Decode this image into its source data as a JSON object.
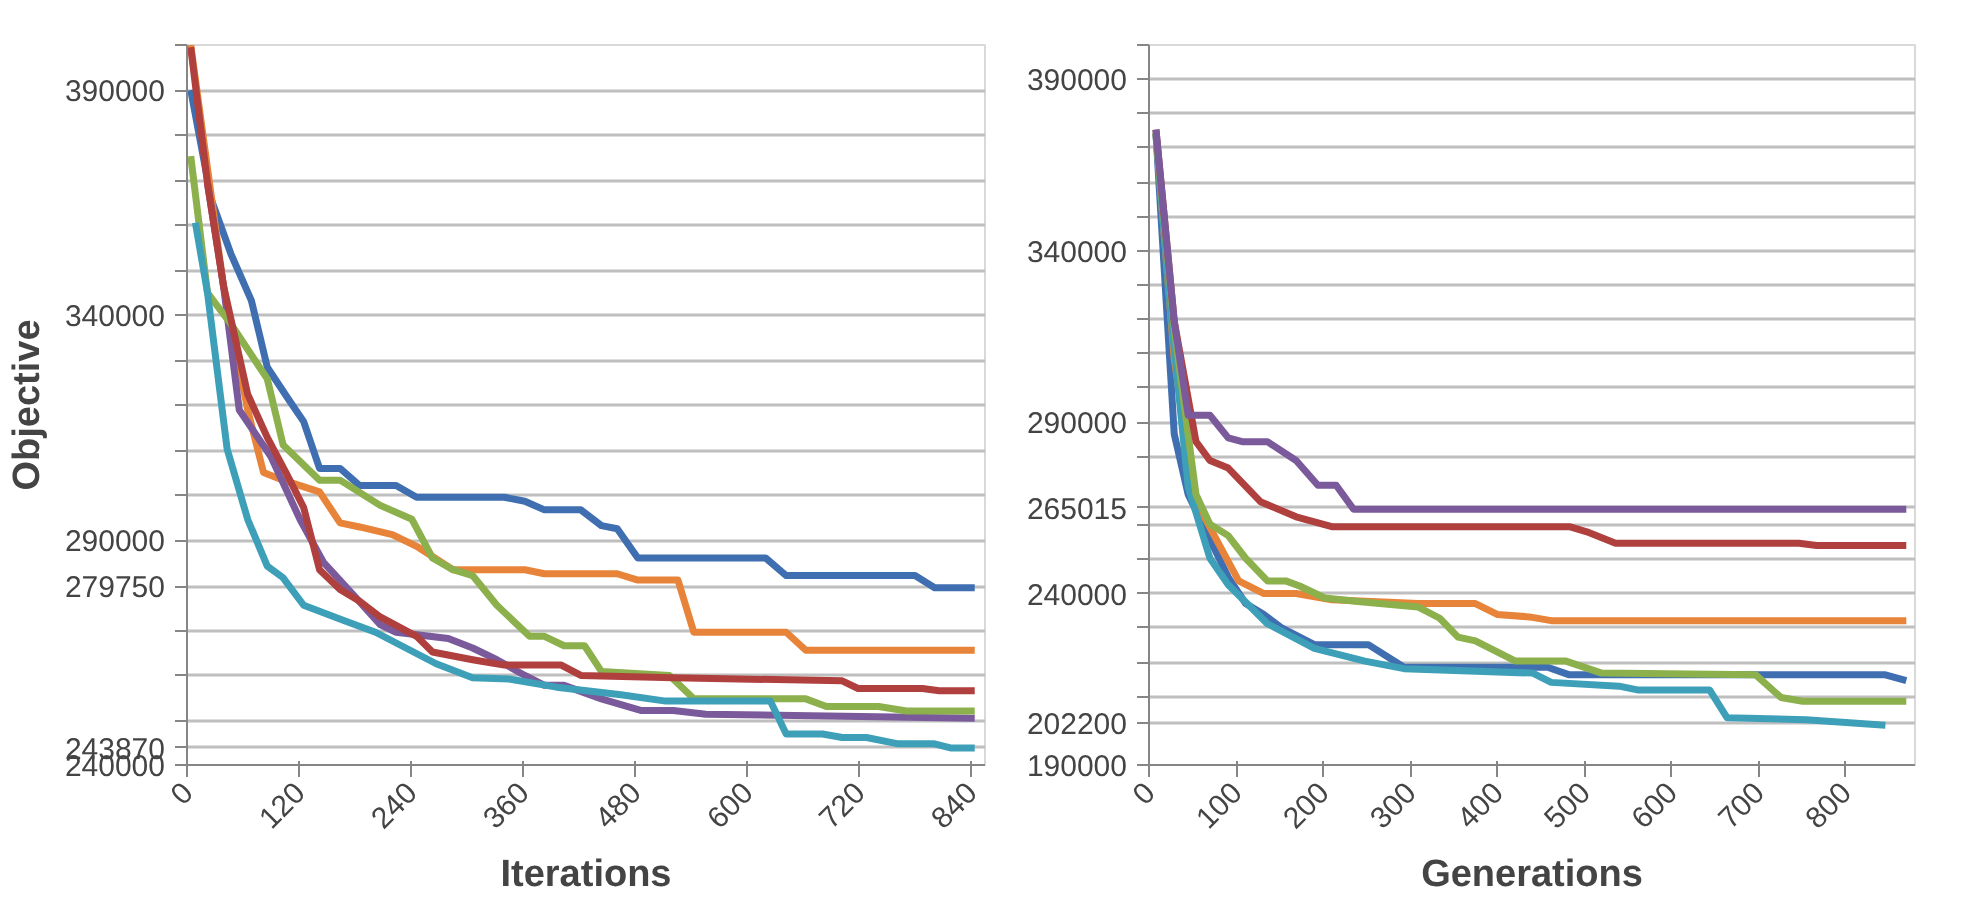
{
  "chart_data": [
    {
      "type": "line",
      "ylabel": "Objective",
      "xlabel": "Iterations",
      "xlim": [
        0,
        855
      ],
      "ylim": [
        240000,
        400000
      ],
      "xticks": [
        0,
        120,
        240,
        360,
        480,
        600,
        720,
        840
      ],
      "yticks": [
        240000,
        243870,
        {
          "value": 250000,
          "label": null
        },
        {
          "value": 260000,
          "label": null
        },
        {
          "value": 270000,
          "label": null
        },
        279750,
        290000,
        {
          "value": 300000,
          "label": null
        },
        {
          "value": 310000,
          "label": null
        },
        {
          "value": 320000,
          "label": null
        },
        {
          "value": 330000,
          "label": null
        },
        340000,
        {
          "value": 350000,
          "label": null
        },
        {
          "value": 360000,
          "label": null
        },
        {
          "value": 370000,
          "label": null
        },
        {
          "value": 380000,
          "label": null
        },
        390000,
        {
          "value": 400000,
          "label": null
        }
      ],
      "grid": "y",
      "series": [
        {
          "color": "#3f6fb0",
          "x": [
            4,
            26,
            47,
            69,
            86,
            108,
            125,
            142,
            164,
            185,
            224,
            246,
            340,
            362,
            383,
            422,
            444,
            461,
            483,
            620,
            642,
            780,
            801,
            844
          ],
          "values": [
            390000,
            365700,
            353600,
            343200,
            328400,
            321500,
            316300,
            305900,
            305900,
            302100,
            302100,
            299500,
            299500,
            298600,
            296700,
            296700,
            293200,
            292500,
            286000,
            286000,
            282100,
            282100,
            279400,
            279400
          ]
        },
        {
          "color": "#e8843a",
          "x": [
            4,
            39,
            65,
            82,
            103,
            142,
            164,
            185,
            220,
            246,
            285,
            362,
            383,
            461,
            483,
            526,
            543,
            642,
            663,
            844
          ],
          "values": [
            400000,
            346600,
            318900,
            305000,
            303300,
            300700,
            293800,
            292900,
            291200,
            288600,
            283400,
            283400,
            282500,
            282500,
            281100,
            281100,
            269500,
            269500,
            265500,
            265500
          ]
        },
        {
          "color": "#7a5a9a",
          "x": [
            22,
            39,
            56,
            90,
            121,
            146,
            177,
            207,
            224,
            280,
            306,
            332,
            362,
            383,
            404,
            444,
            487,
            521,
            556,
            844
          ],
          "values": [
            369200,
            346600,
            318900,
            308500,
            294600,
            285100,
            278100,
            271200,
            269500,
            268100,
            266000,
            263400,
            259900,
            257700,
            257700,
            254700,
            252100,
            252100,
            251300,
            250400
          ]
        },
        {
          "color": "#8cb04c",
          "x": [
            4,
            22,
            47,
            86,
            103,
            142,
            164,
            207,
            241,
            263,
            285,
            306,
            332,
            367,
            383,
            404,
            426,
            444,
            517,
            543,
            663,
            685,
            741,
            771,
            844
          ],
          "values": [
            375300,
            344900,
            338000,
            325800,
            311100,
            303300,
            303300,
            297700,
            294600,
            286000,
            283400,
            282100,
            275500,
            268600,
            268600,
            266500,
            266500,
            260800,
            259900,
            254700,
            254700,
            253000,
            253000,
            252000,
            252000
          ]
        },
        {
          "color": "#3ea0b8",
          "x": [
            9,
            22,
            43,
            65,
            86,
            103,
            125,
            168,
            202,
            267,
            306,
            345,
            396,
            465,
            513,
            625,
            642,
            681,
            702,
            728,
            762,
            801,
            818,
            844
          ],
          "values": [
            360500,
            344900,
            310200,
            294600,
            284200,
            281600,
            275500,
            272100,
            269500,
            262500,
            259400,
            259100,
            257300,
            255600,
            254200,
            254200,
            246900,
            246900,
            246100,
            246100,
            244700,
            244700,
            243800,
            243800
          ]
        },
        {
          "color": "#b0403e",
          "x": [
            4,
            22,
            39,
            65,
            86,
            108,
            125,
            142,
            164,
            185,
            207,
            246,
            263,
            306,
            340,
            401,
            422,
            521,
            702,
            719,
            788,
            806,
            844
          ],
          "values": [
            399500,
            369200,
            346600,
            322400,
            312800,
            304200,
            297200,
            283400,
            279000,
            276400,
            272900,
            268600,
            265100,
            263400,
            262200,
            262200,
            259900,
            259400,
            258700,
            257000,
            257000,
            256500,
            256500
          ]
        }
      ]
    },
    {
      "type": "line",
      "xlabel": "Generations",
      "xlim": [
        0,
        880
      ],
      "ylim": [
        190000,
        400000
      ],
      "xticks": [
        0,
        100,
        200,
        300,
        400,
        500,
        600,
        700,
        800
      ],
      "yticks": [
        190000,
        202200,
        {
          "value": 210000,
          "label": null
        },
        {
          "value": 220000,
          "label": null
        },
        {
          "value": 230000,
          "label": null
        },
        240000,
        {
          "value": 250000,
          "label": null
        },
        {
          "value": 260000,
          "label": null
        },
        265015,
        {
          "value": 280000,
          "label": null
        },
        290000,
        {
          "value": 300000,
          "label": null
        },
        {
          "value": 310000,
          "label": null
        },
        {
          "value": 320000,
          "label": null
        },
        {
          "value": 330000,
          "label": null
        },
        340000,
        {
          "value": 350000,
          "label": null
        },
        {
          "value": 360000,
          "label": null
        },
        {
          "value": 370000,
          "label": null
        },
        {
          "value": 380000,
          "label": null
        },
        390000,
        {
          "value": 400000,
          "label": null
        }
      ],
      "grid": "y",
      "series": [
        {
          "color": "#3f6fb0",
          "x": [
            8,
            29,
            45,
            70,
            91,
            111,
            132,
            153,
            190,
            252,
            293,
            458,
            483,
            846,
            870
          ],
          "values": [
            374200,
            286500,
            268900,
            255800,
            244800,
            237100,
            233900,
            229900,
            225100,
            225100,
            218500,
            218500,
            216300,
            216300,
            214600
          ]
        },
        {
          "color": "#e8843a",
          "x": [
            8,
            29,
            54,
            103,
            132,
            169,
            210,
            309,
            375,
            400,
            437,
            462,
            870
          ],
          "values": [
            374200,
            308400,
            266800,
            243700,
            240000,
            240000,
            238200,
            237100,
            237100,
            233900,
            233200,
            232100,
            232100
          ]
        },
        {
          "color": "#3ea0b8",
          "x": [
            8,
            25,
            45,
            70,
            91,
            136,
            190,
            248,
            293,
            441,
            462,
            540,
            561,
            644,
            664,
            755,
            846
          ],
          "values": [
            374200,
            321600,
            271100,
            250300,
            242600,
            231200,
            224000,
            220300,
            218100,
            216800,
            214100,
            213000,
            211900,
            211900,
            203800,
            203200,
            201600
          ]
        },
        {
          "color": "#8cb04c",
          "x": [
            8,
            29,
            54,
            70,
            91,
            111,
            136,
            157,
            173,
            202,
            243,
            309,
            334,
            355,
            375,
            421,
            479,
            520,
            697,
            726,
            751,
            870
          ],
          "values": [
            374200,
            317200,
            268900,
            260200,
            256900,
            250300,
            243700,
            243700,
            242200,
            238700,
            237600,
            236100,
            232800,
            227300,
            226200,
            220300,
            220300,
            216800,
            216300,
            209700,
            208600,
            208600
          ]
        },
        {
          "color": "#b0403e",
          "x": [
            8,
            29,
            54,
            70,
            91,
            128,
            169,
            210,
            483,
            503,
            536,
            747,
            767,
            870
          ],
          "values": [
            375300,
            319400,
            284300,
            278800,
            276600,
            266800,
            262400,
            259500,
            259500,
            258000,
            254700,
            254700,
            254000,
            254000
          ]
        },
        {
          "color": "#7a5a9a",
          "x": [
            8,
            29,
            45,
            70,
            91,
            107,
            136,
            169,
            194,
            215,
            235,
            870
          ],
          "values": [
            375300,
            319400,
            292000,
            292000,
            285400,
            284300,
            284300,
            278800,
            271600,
            271600,
            264600,
            264600
          ]
        }
      ]
    }
  ]
}
